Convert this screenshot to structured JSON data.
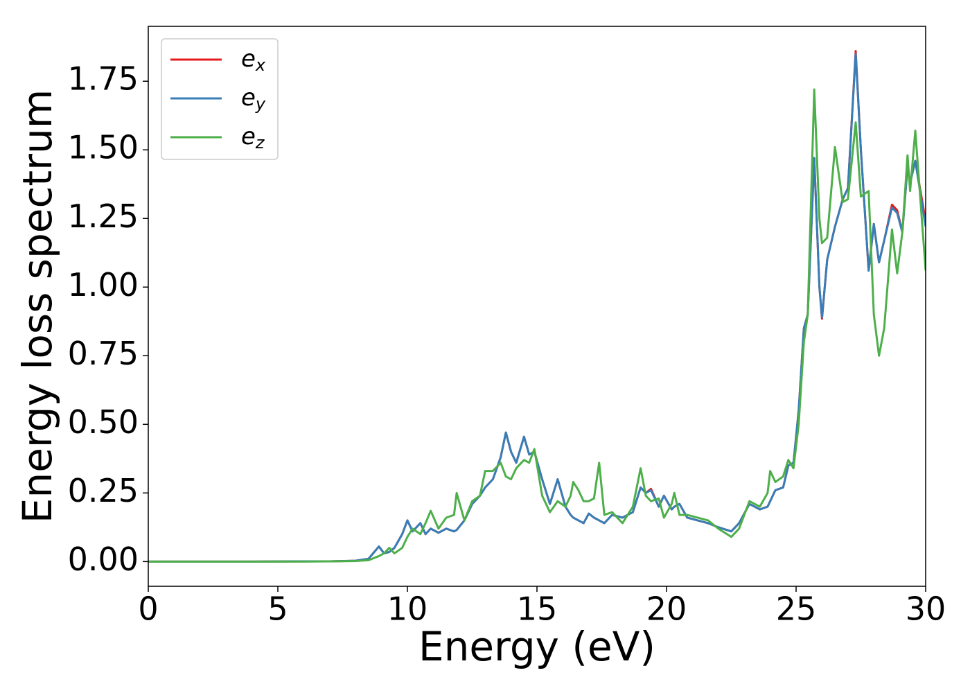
{
  "chart_data": {
    "type": "line",
    "xlabel": "Energy (eV)",
    "ylabel": "Energy loss spectrum",
    "x": [
      0,
      2,
      4,
      6,
      7,
      8,
      8.5,
      8.9,
      9.1,
      9.3,
      9.5,
      9.8,
      10,
      10.2,
      10.5,
      10.7,
      10.9,
      11.2,
      11.5,
      11.8,
      11.9,
      12.2,
      12.5,
      12.8,
      13,
      13.3,
      13.6,
      13.8,
      14,
      14.2,
      14.5,
      14.7,
      14.9,
      15.2,
      15.5,
      15.8,
      16.1,
      16.3,
      16.4,
      16.6,
      16.8,
      17,
      17.2,
      17.4,
      17.6,
      17.9,
      18.3,
      18.7,
      19,
      19.2,
      19.4,
      19.7,
      19.9,
      20.2,
      20.3,
      20.5,
      20.8,
      21.2,
      21.6,
      22,
      22.5,
      22.8,
      23.2,
      23.6,
      23.9,
      24,
      24.2,
      24.5,
      24.7,
      24.9,
      25.1,
      25.3,
      25.45,
      25.7,
      25.9,
      26,
      26.2,
      26.5,
      26.8,
      27,
      27.3,
      27.5,
      27.8,
      28,
      28.2,
      28.4,
      28.7,
      28.9,
      29.1,
      29.3,
      29.4,
      29.6,
      30
    ],
    "series": [
      {
        "name": "e_x",
        "color": "#e41a1c",
        "values": [
          0,
          0,
          0,
          0.001,
          0.001,
          0.003,
          0.01,
          0.055,
          0.03,
          0.035,
          0.05,
          0.1,
          0.15,
          0.11,
          0.14,
          0.1,
          0.12,
          0.105,
          0.12,
          0.11,
          0.115,
          0.15,
          0.21,
          0.24,
          0.27,
          0.3,
          0.38,
          0.47,
          0.4,
          0.36,
          0.455,
          0.39,
          0.4,
          0.3,
          0.21,
          0.3,
          0.2,
          0.17,
          0.16,
          0.15,
          0.14,
          0.175,
          0.16,
          0.15,
          0.14,
          0.17,
          0.16,
          0.18,
          0.27,
          0.25,
          0.265,
          0.2,
          0.24,
          0.19,
          0.2,
          0.21,
          0.16,
          0.15,
          0.14,
          0.125,
          0.11,
          0.14,
          0.21,
          0.19,
          0.2,
          0.22,
          0.26,
          0.27,
          0.35,
          0.36,
          0.55,
          0.85,
          0.9,
          1.47,
          1.0,
          0.885,
          1.1,
          1.22,
          1.32,
          1.36,
          1.86,
          1.5,
          1.06,
          1.23,
          1.09,
          1.17,
          1.3,
          1.28,
          1.2,
          1.44,
          1.38,
          1.46,
          1.24
        ]
      },
      {
        "name": "e_y",
        "color": "#377eb8",
        "values": [
          0,
          0,
          0,
          0.001,
          0.001,
          0.003,
          0.01,
          0.055,
          0.03,
          0.035,
          0.05,
          0.1,
          0.15,
          0.11,
          0.14,
          0.1,
          0.12,
          0.105,
          0.12,
          0.11,
          0.115,
          0.15,
          0.21,
          0.24,
          0.27,
          0.3,
          0.38,
          0.47,
          0.4,
          0.36,
          0.455,
          0.39,
          0.4,
          0.3,
          0.21,
          0.3,
          0.2,
          0.17,
          0.16,
          0.15,
          0.14,
          0.175,
          0.16,
          0.15,
          0.14,
          0.17,
          0.16,
          0.18,
          0.27,
          0.25,
          0.26,
          0.2,
          0.24,
          0.19,
          0.2,
          0.21,
          0.16,
          0.15,
          0.14,
          0.125,
          0.11,
          0.14,
          0.21,
          0.19,
          0.2,
          0.22,
          0.26,
          0.27,
          0.35,
          0.36,
          0.55,
          0.85,
          0.9,
          1.47,
          1.0,
          0.89,
          1.1,
          1.22,
          1.32,
          1.36,
          1.85,
          1.5,
          1.06,
          1.23,
          1.09,
          1.17,
          1.29,
          1.27,
          1.2,
          1.44,
          1.38,
          1.46,
          1.22
        ]
      },
      {
        "name": "e_z",
        "color": "#4daf4a",
        "values": [
          0,
          0,
          0,
          0,
          0.001,
          0.002,
          0.005,
          0.02,
          0.03,
          0.05,
          0.03,
          0.05,
          0.09,
          0.12,
          0.1,
          0.14,
          0.185,
          0.12,
          0.16,
          0.17,
          0.25,
          0.15,
          0.22,
          0.24,
          0.33,
          0.33,
          0.36,
          0.31,
          0.3,
          0.34,
          0.37,
          0.36,
          0.41,
          0.24,
          0.18,
          0.22,
          0.2,
          0.24,
          0.29,
          0.26,
          0.22,
          0.22,
          0.23,
          0.36,
          0.17,
          0.18,
          0.14,
          0.2,
          0.34,
          0.24,
          0.22,
          0.23,
          0.16,
          0.21,
          0.25,
          0.17,
          0.17,
          0.16,
          0.15,
          0.12,
          0.09,
          0.12,
          0.22,
          0.2,
          0.25,
          0.33,
          0.29,
          0.31,
          0.37,
          0.34,
          0.5,
          0.8,
          0.9,
          1.72,
          1.25,
          1.16,
          1.18,
          1.51,
          1.31,
          1.32,
          1.6,
          1.33,
          1.35,
          0.9,
          0.75,
          0.85,
          1.21,
          1.05,
          1.2,
          1.48,
          1.35,
          1.57,
          1.06
        ]
      }
    ],
    "xlim": [
      0,
      30
    ],
    "xticks": [
      0,
      5,
      10,
      15,
      20,
      25,
      30
    ],
    "ylim": [
      -0.09,
      1.95
    ],
    "yticks": [
      {
        "value": 0,
        "label": "0.00"
      },
      {
        "value": 0.25,
        "label": "0.25"
      },
      {
        "value": 0.5,
        "label": "0.50"
      },
      {
        "value": 0.75,
        "label": "0.75"
      },
      {
        "value": 1,
        "label": "1.00"
      },
      {
        "value": 1.25,
        "label": "1.25"
      },
      {
        "value": 1.5,
        "label": "1.50"
      },
      {
        "value": 1.75,
        "label": "1.75"
      }
    ],
    "legend": "upper left",
    "grid": false
  }
}
